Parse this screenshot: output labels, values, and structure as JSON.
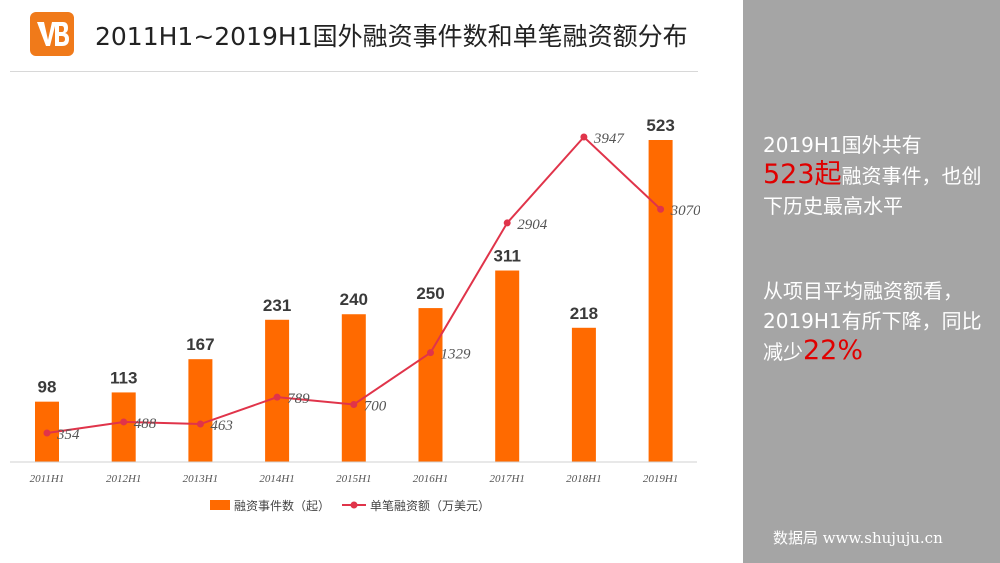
{
  "header": {
    "title": "2011H1~2019H1国外融资事件数和单笔融资额分布",
    "logo_icon": "vb-logo-icon"
  },
  "colors": {
    "bar": "#ff6a00",
    "line": "#e0344a",
    "accent": "#e00000",
    "side_bg": "#a5a5a5"
  },
  "chart_data": {
    "type": "bar",
    "categories": [
      "2011H1",
      "2012H1",
      "2013H1",
      "2014H1",
      "2015H1",
      "2016H1",
      "2017H1",
      "2018H1",
      "2019H1"
    ],
    "series": [
      {
        "name": "融资事件数（起）",
        "type": "bar",
        "values": [
          98,
          113,
          167,
          231,
          240,
          250,
          311,
          218,
          523
        ]
      },
      {
        "name": "单笔融资额（万美元）",
        "type": "line",
        "values": [
          354,
          488,
          463,
          789,
          700,
          1329,
          2904,
          3947,
          3070
        ]
      }
    ],
    "legend_position": "bottom",
    "grid": false
  },
  "side": {
    "p1_line1": "2019H1国外共有",
    "p1_highlight": "523起",
    "p1_rest": "融资事件，也创下历史最高水平",
    "p2_text": "从项目平均融资额看，2019H1有所下降，同比减少",
    "p2_highlight": "22%"
  },
  "watermark": "数据局 www.shujuju.cn"
}
